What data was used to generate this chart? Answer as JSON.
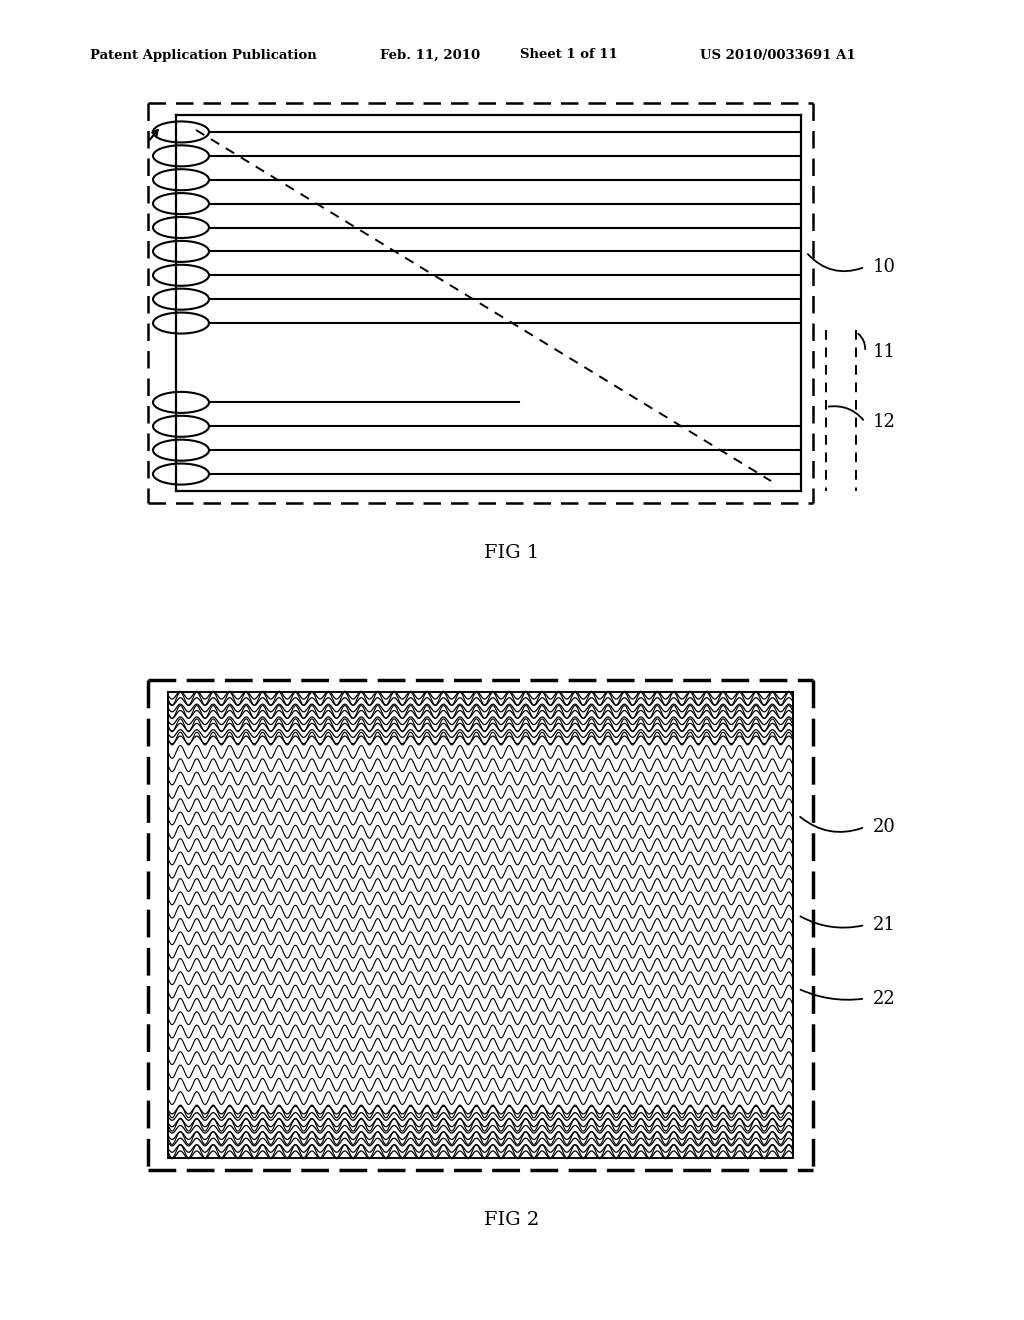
{
  "bg_color": "#ffffff",
  "header_text": "Patent Application Publication",
  "header_date": "Feb. 11, 2010",
  "header_sheet": "Sheet 1 of 11",
  "header_patent": "US 2010/0033691 A1",
  "fig1_label": "FIG 1",
  "fig2_label": "FIG 2"
}
